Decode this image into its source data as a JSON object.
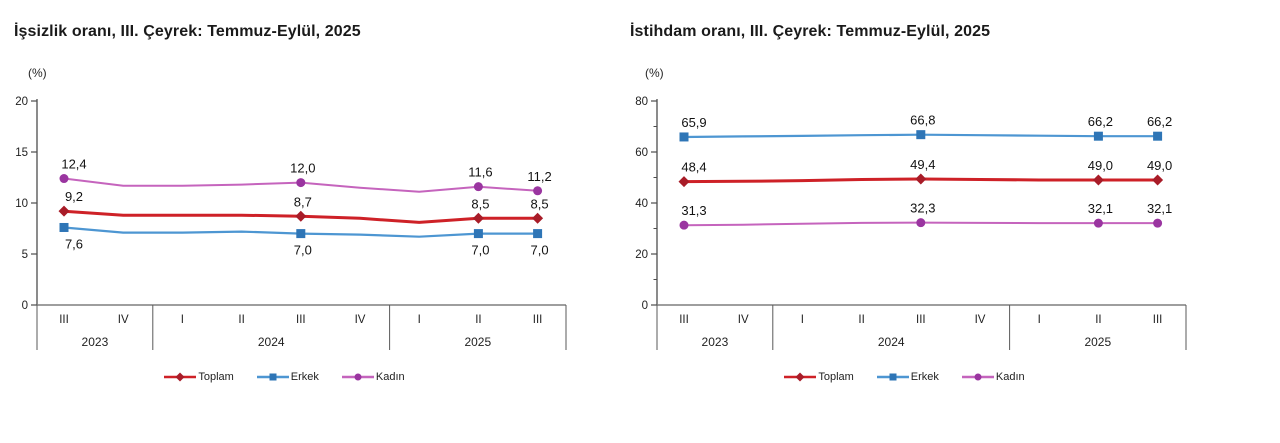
{
  "style": {
    "axis_color": "#4d4d4d",
    "baseline_color": "#7f7f7f",
    "divider_color": "#595959",
    "tick_text_color": "#1f1f1f",
    "data_label_color": "#121212"
  },
  "chart_data": [
    {
      "type": "line",
      "title": "İşsizlik oranı, III. Çeyrek: Temmuz-Eylül, 2025",
      "unit": "(%)",
      "ylim": [
        0,
        20
      ],
      "yticks": [
        0,
        5,
        10,
        15,
        20
      ],
      "minor_ytick_step": null,
      "grid": false,
      "legend_position": "bottom",
      "categories": [
        "III",
        "IV",
        "I",
        "II",
        "III",
        "IV",
        "I",
        "II",
        "III"
      ],
      "year_groups": [
        {
          "label": "2023",
          "span": 2
        },
        {
          "label": "2024",
          "span": 4
        },
        {
          "label": "2025",
          "span": 3
        }
      ],
      "labeled_indices": [
        0,
        4,
        7,
        8
      ],
      "series": [
        {
          "name": "Toplam",
          "color": "#ce2127",
          "marker_color": "#a81c28",
          "marker": "diamond",
          "line_width": 3,
          "label_side": "above",
          "values": [
            9.2,
            8.8,
            8.8,
            8.8,
            8.7,
            8.5,
            8.1,
            8.5,
            8.5
          ],
          "point_labels": [
            "9,2",
            "8,7",
            "8,5",
            "8,5"
          ]
        },
        {
          "name": "Erkek",
          "color": "#4d96d2",
          "marker_color": "#2e75b6",
          "marker": "square",
          "line_width": 2.2,
          "label_side": "below",
          "values": [
            7.6,
            7.1,
            7.1,
            7.2,
            7.0,
            6.9,
            6.7,
            7.0,
            7.0
          ],
          "point_labels": [
            "7,6",
            "7,0",
            "7,0",
            "7,0"
          ]
        },
        {
          "name": "Kadın",
          "color": "#c564bd",
          "marker_color": "#9a35a0",
          "marker": "circle",
          "line_width": 2,
          "label_side": "above",
          "values": [
            12.4,
            11.7,
            11.7,
            11.8,
            12.0,
            11.5,
            11.1,
            11.6,
            11.2
          ],
          "point_labels": [
            "12,4",
            "12,0",
            "11,6",
            "11,2"
          ]
        }
      ]
    },
    {
      "type": "line",
      "title": "İstihdam oranı, III. Çeyrek: Temmuz-Eylül, 2025",
      "unit": "(%)",
      "ylim": [
        0,
        80
      ],
      "yticks": [
        0,
        20,
        40,
        60,
        80
      ],
      "minor_ytick_step": 10,
      "grid": false,
      "legend_position": "bottom",
      "categories": [
        "III",
        "IV",
        "I",
        "II",
        "III",
        "IV",
        "I",
        "II",
        "III"
      ],
      "year_groups": [
        {
          "label": "2023",
          "span": 2
        },
        {
          "label": "2024",
          "span": 4
        },
        {
          "label": "2025",
          "span": 3
        }
      ],
      "labeled_indices": [
        0,
        4,
        7,
        8
      ],
      "series": [
        {
          "name": "Toplam",
          "color": "#ce2127",
          "marker_color": "#a81c28",
          "marker": "diamond",
          "line_width": 3,
          "label_side": "above",
          "values": [
            48.4,
            48.5,
            48.8,
            49.2,
            49.4,
            49.2,
            49.0,
            49.0,
            49.0
          ],
          "point_labels": [
            "48,4",
            "49,4",
            "49,0",
            "49,0"
          ]
        },
        {
          "name": "Erkek",
          "color": "#4d96d2",
          "marker_color": "#2e75b6",
          "marker": "square",
          "line_width": 2.2,
          "label_side": "above",
          "values": [
            65.9,
            66.1,
            66.3,
            66.6,
            66.8,
            66.6,
            66.4,
            66.2,
            66.2
          ],
          "point_labels": [
            "65,9",
            "66,8",
            "66,2",
            "66,2"
          ]
        },
        {
          "name": "Kadın",
          "color": "#c564bd",
          "marker_color": "#9a35a0",
          "marker": "circle",
          "line_width": 2,
          "label_side": "above",
          "values": [
            31.3,
            31.5,
            31.9,
            32.2,
            32.3,
            32.2,
            32.1,
            32.1,
            32.1
          ],
          "point_labels": [
            "31,3",
            "32,3",
            "32,1",
            "32,1"
          ]
        }
      ]
    }
  ]
}
